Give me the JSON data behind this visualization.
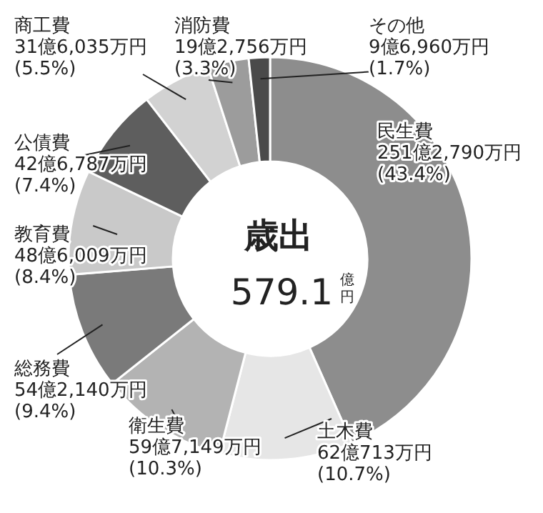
{
  "chart_data": {
    "type": "donut",
    "title": "歳出",
    "subtitle": "579.1億円",
    "categories": [
      "民生費",
      "土木費",
      "衛生費",
      "総務費",
      "教育費",
      "公債費",
      "商工費",
      "消防費",
      "その他"
    ],
    "values": [
      43.4,
      10.7,
      10.3,
      9.4,
      8.4,
      7.4,
      5.5,
      3.3,
      1.7
    ],
    "value_labels": [
      "251億2,790万円\n(43.4%)",
      "62億713万円\n(10.7%)",
      "59億7,149万円\n(10.3%)",
      "54億2,140万円\n(9.4%)",
      "48億6,009万円\n(8.4%)",
      "42億6,787万円\n(7.4%)",
      "31億6,035万円\n(5.5%)",
      "19億2,756万円\n(3.3%)",
      "9億6,960万円\n(1.7%)"
    ],
    "colors": [
      "#8d8d8d",
      "#e6e6e6",
      "#b3b3b3",
      "#7a7a7a",
      "#c9c9c9",
      "#5e5e5e",
      "#d2d2d2",
      "#9c9c9c",
      "#4a4a4a"
    ]
  }
}
